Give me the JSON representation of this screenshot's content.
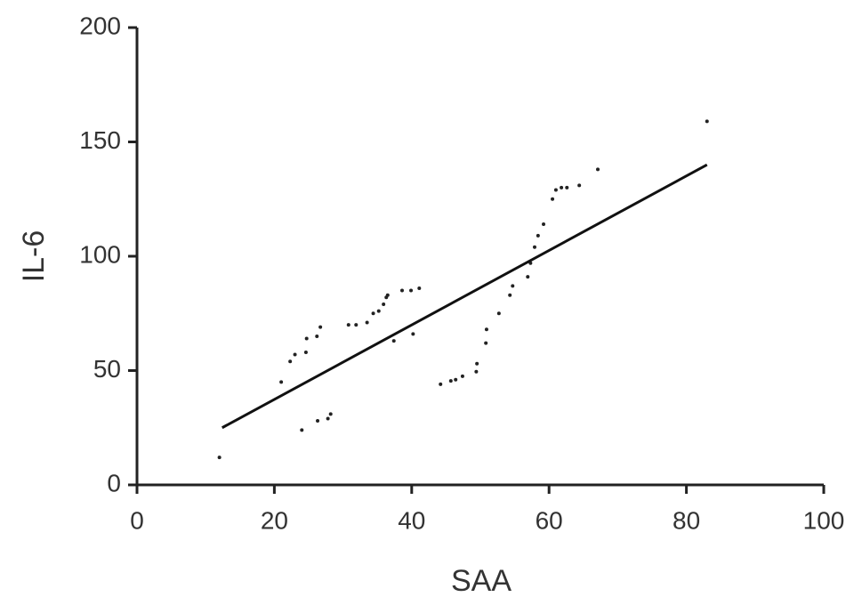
{
  "chart_data": {
    "type": "scatter",
    "x_label": "SAA",
    "y_label": "IL-6",
    "x": [
      12,
      21,
      22.3,
      23,
      24.6,
      24.7,
      26.2,
      26.7,
      24,
      26.3,
      27.8,
      28.2,
      30.8,
      31.9,
      33.5,
      34.4,
      35.2,
      35.9,
      36.3,
      36.5,
      37.4,
      38.6,
      39.9,
      40.2,
      41.1,
      44.2,
      45.7,
      46.4,
      47.4,
      49.4,
      49.5,
      50.8,
      50.9,
      52.7,
      54.3,
      54.7,
      56.9,
      57.3,
      57.9,
      58.4,
      59.2,
      60.5,
      61,
      61.8,
      62.6,
      64.4,
      67.1,
      83
    ],
    "values": [
      12,
      45,
      54,
      57,
      58,
      64,
      65,
      69,
      24,
      28,
      29,
      31,
      70,
      70,
      71,
      75,
      76,
      79,
      82,
      83,
      63,
      85,
      85,
      66,
      86,
      44,
      45.5,
      46,
      47.5,
      49.5,
      53,
      62,
      68,
      75,
      83,
      87,
      91,
      97,
      104,
      109,
      114,
      125,
      129,
      130,
      130,
      131,
      138,
      159
    ],
    "color": "#222222",
    "trend_line": {
      "x": [
        12.4,
        83
      ],
      "values": [
        25,
        140
      ],
      "color": "#111111"
    },
    "xlim": [
      0,
      100
    ],
    "xticks": [
      0,
      20,
      40,
      60,
      80,
      100
    ],
    "ylim": [
      0,
      200
    ],
    "yticks": [
      0,
      50,
      100,
      150,
      200
    ]
  }
}
